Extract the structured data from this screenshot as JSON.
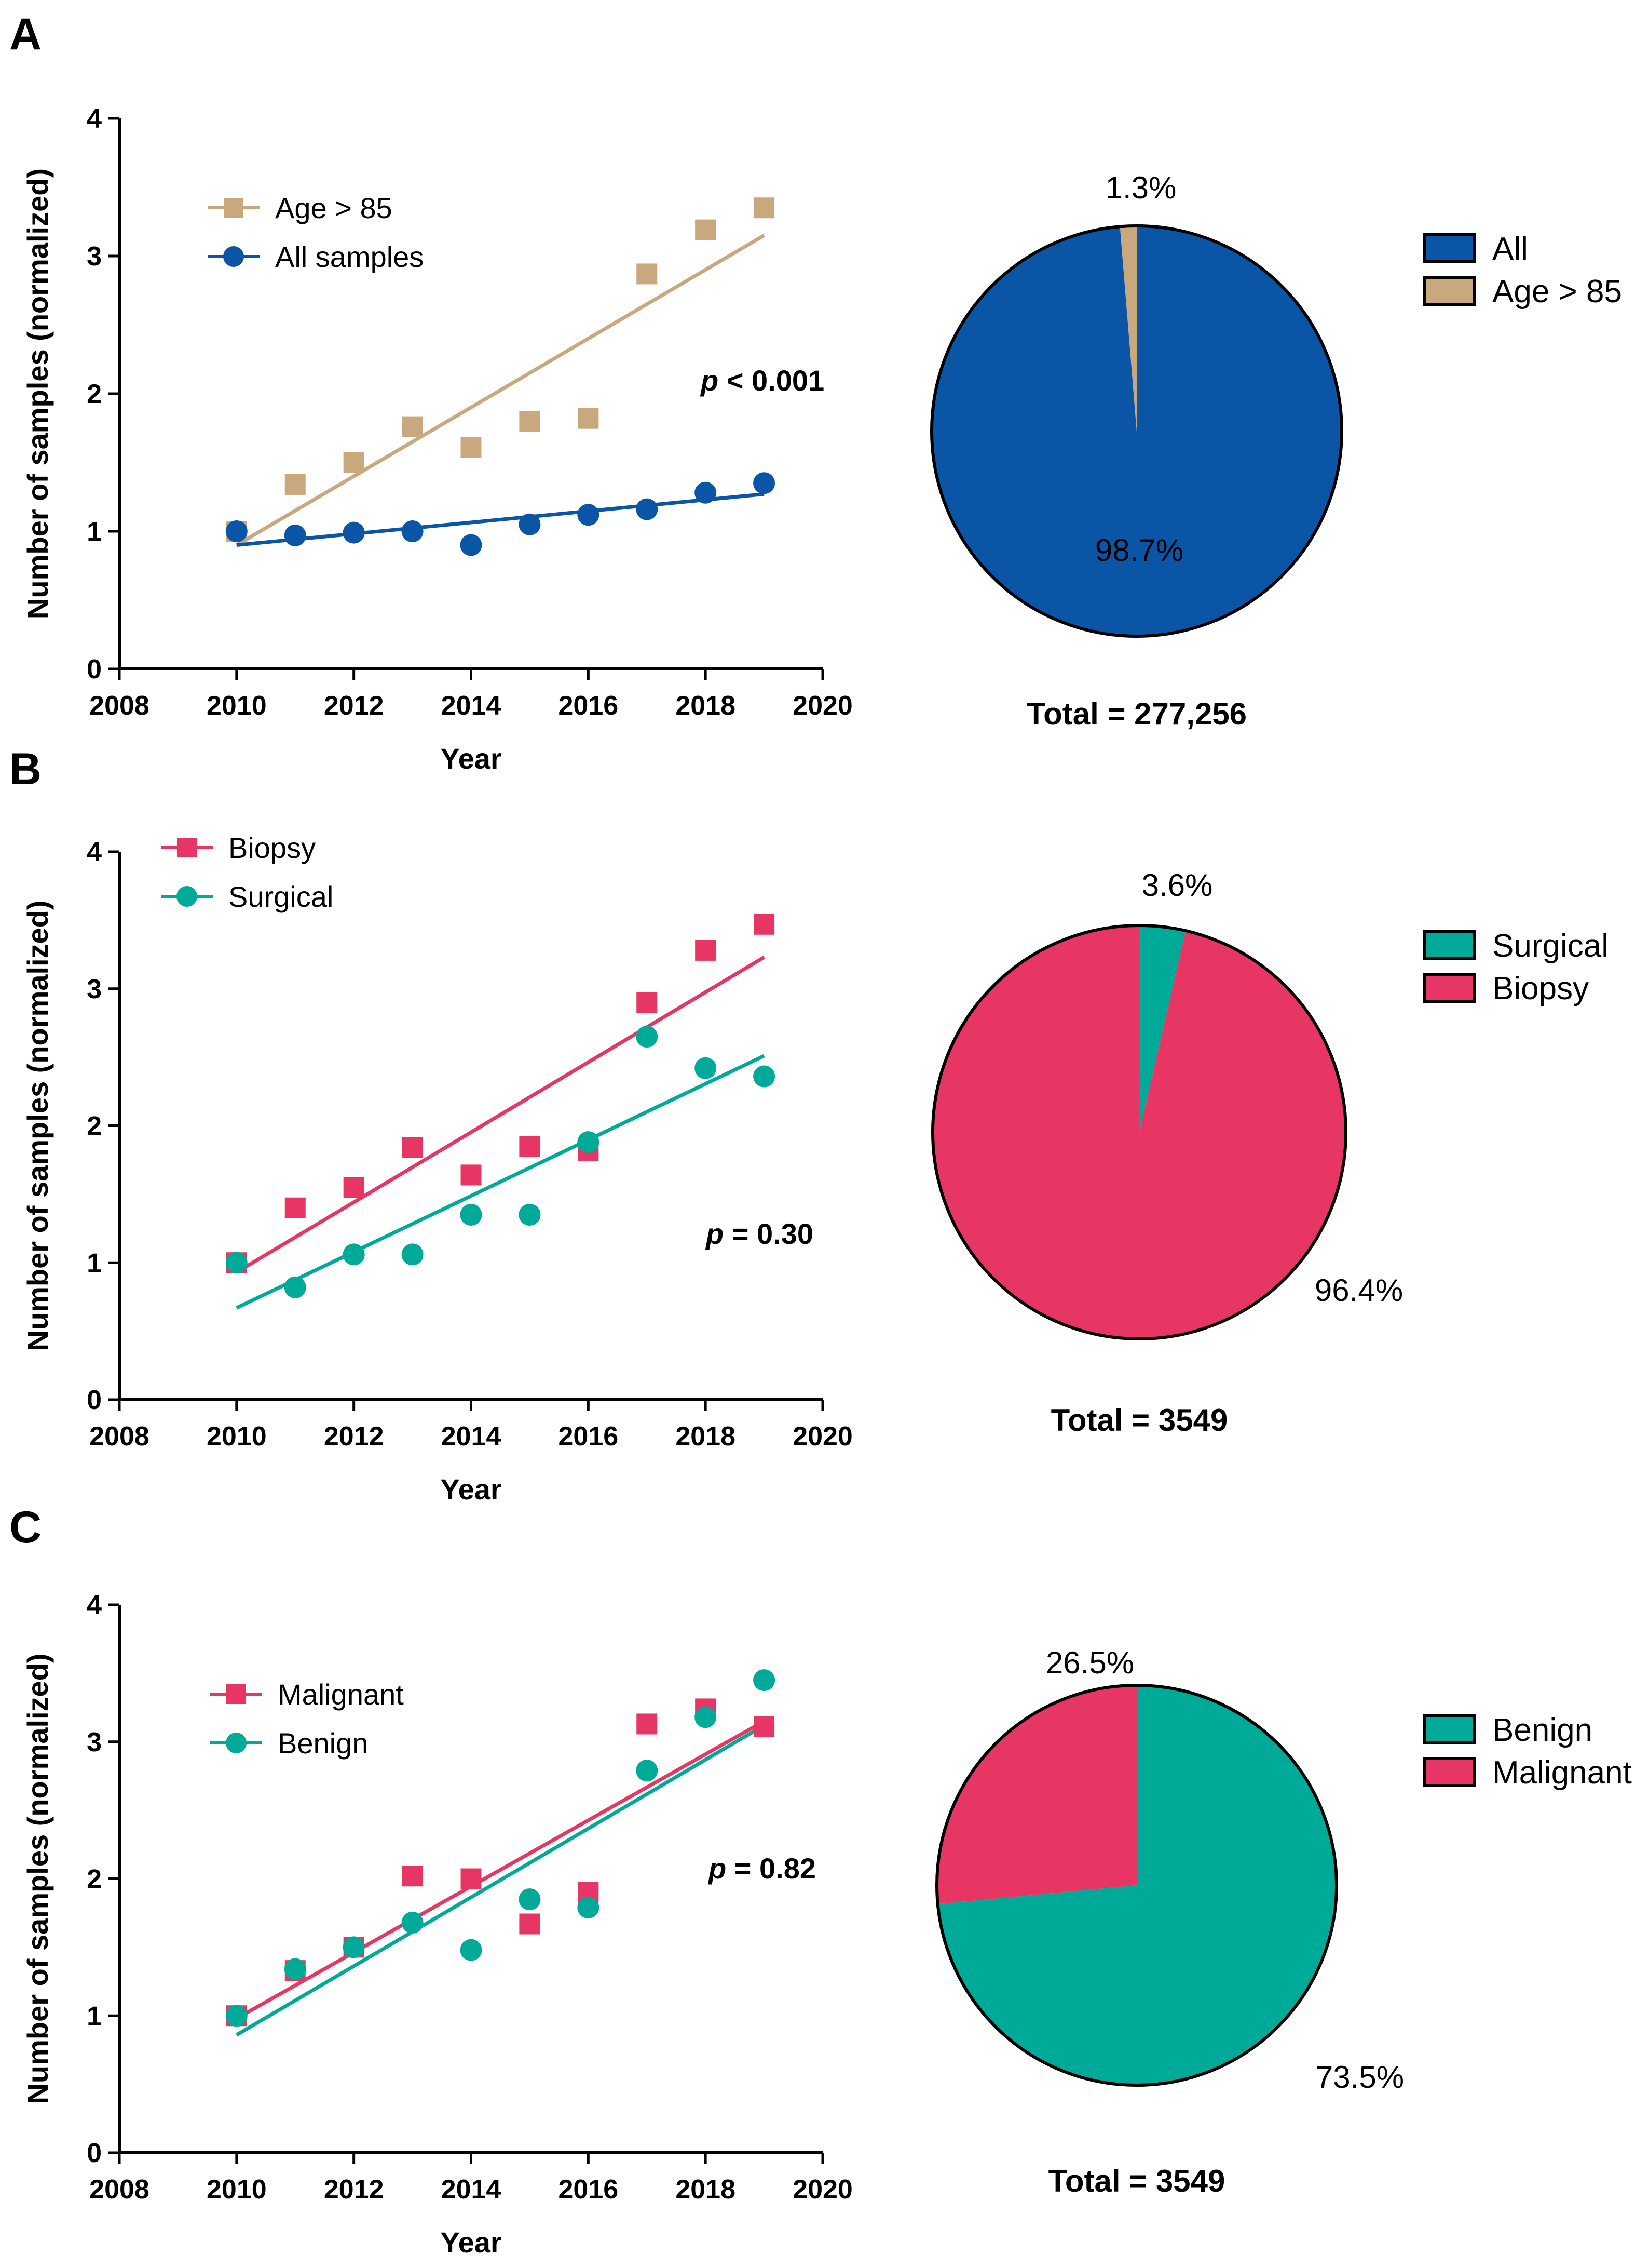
{
  "chart_data": [
    {
      "panel": "A",
      "type": "scatter",
      "xlabel": "Year",
      "ylabel": "Number of samples (normalized)",
      "xlim": [
        2008,
        2020
      ],
      "ylim": [
        0,
        4
      ],
      "xticks": [
        2008,
        2010,
        2012,
        2014,
        2016,
        2018,
        2020
      ],
      "yticks": [
        0,
        1,
        2,
        3,
        4
      ],
      "p_prefix": "p",
      "p_rest": " < 0.001",
      "legend_position": "top-left",
      "series": [
        {
          "name": "Age > 85",
          "marker": "square",
          "color": "#c8a87c",
          "x": [
            2010,
            2011,
            2012,
            2013,
            2014,
            2015,
            2016,
            2017,
            2018,
            2019
          ],
          "y": [
            1.0,
            1.34,
            1.5,
            1.76,
            1.61,
            1.8,
            1.82,
            2.87,
            3.19,
            3.35
          ],
          "fit": [
            0.9,
            3.15
          ]
        },
        {
          "name": "All samples",
          "marker": "circle",
          "color": "#0b55a6",
          "x": [
            2010,
            2011,
            2012,
            2013,
            2014,
            2015,
            2016,
            2017,
            2018,
            2019
          ],
          "y": [
            1.0,
            0.97,
            0.99,
            1.0,
            0.9,
            1.05,
            1.12,
            1.16,
            1.28,
            1.35
          ],
          "fit": [
            0.9,
            1.27
          ]
        }
      ],
      "pie": {
        "total_label": "Total = 277,256",
        "start": "top",
        "slices": [
          {
            "label": "All",
            "value": 98.7,
            "pct_label": "98.7%",
            "color": "#0b55a6"
          },
          {
            "label": "Age > 85",
            "value": 1.3,
            "pct_label": "1.3%",
            "color": "#c8a87c"
          }
        ]
      }
    },
    {
      "panel": "B",
      "type": "scatter",
      "xlabel": "Year",
      "ylabel": "Number of samples (normalized)",
      "xlim": [
        2008,
        2020
      ],
      "ylim": [
        0,
        4
      ],
      "xticks": [
        2008,
        2010,
        2012,
        2014,
        2016,
        2018,
        2020
      ],
      "yticks": [
        0,
        1,
        2,
        3,
        4
      ],
      "p_prefix": "p",
      "p_rest": " = 0.30",
      "legend_position": "top-left",
      "series": [
        {
          "name": "Biopsy",
          "marker": "square",
          "color": "#e73564",
          "x": [
            2010,
            2011,
            2012,
            2013,
            2014,
            2015,
            2016,
            2017,
            2018,
            2019
          ],
          "y": [
            1.0,
            1.4,
            1.55,
            1.84,
            1.64,
            1.85,
            1.82,
            2.9,
            3.28,
            3.47
          ],
          "fit": [
            0.93,
            3.23
          ]
        },
        {
          "name": "Surgical",
          "marker": "circle",
          "color": "#00aa98",
          "x": [
            2010,
            2011,
            2012,
            2013,
            2014,
            2015,
            2016,
            2017,
            2018,
            2019
          ],
          "y": [
            1.0,
            0.82,
            1.06,
            1.06,
            1.35,
            1.35,
            1.88,
            2.65,
            2.42,
            2.36
          ],
          "fit": [
            0.67,
            2.51
          ]
        }
      ],
      "pie": {
        "total_label": "Total = 3549",
        "start": "top",
        "slices": [
          {
            "label": "Surgical",
            "value": 3.6,
            "pct_label": "3.6%",
            "color": "#00aa98"
          },
          {
            "label": "Biopsy",
            "value": 96.4,
            "pct_label": "96.4%",
            "color": "#e73564"
          }
        ]
      }
    },
    {
      "panel": "C",
      "type": "scatter",
      "xlabel": "Year",
      "ylabel": "Number of samples (normalized)",
      "xlim": [
        2008,
        2020
      ],
      "ylim": [
        0,
        4
      ],
      "xticks": [
        2008,
        2010,
        2012,
        2014,
        2016,
        2018,
        2020
      ],
      "yticks": [
        0,
        1,
        2,
        3,
        4
      ],
      "p_prefix": "p",
      "p_rest": " = 0.82",
      "legend_position": "top-left",
      "series": [
        {
          "name": "Malignant",
          "marker": "square",
          "color": "#e73564",
          "x": [
            2010,
            2011,
            2012,
            2013,
            2014,
            2015,
            2016,
            2017,
            2018,
            2019
          ],
          "y": [
            1.0,
            1.33,
            1.5,
            2.02,
            2.0,
            1.67,
            1.9,
            3.13,
            3.24,
            3.11
          ],
          "fit": [
            0.98,
            3.15
          ]
        },
        {
          "name": "Benign",
          "marker": "circle",
          "color": "#00aa98",
          "x": [
            2010,
            2011,
            2012,
            2013,
            2014,
            2015,
            2016,
            2017,
            2018,
            2019
          ],
          "y": [
            1.0,
            1.34,
            1.5,
            1.68,
            1.48,
            1.85,
            1.79,
            2.79,
            3.18,
            3.45
          ],
          "fit": [
            0.86,
            3.12
          ]
        }
      ],
      "pie": {
        "total_label": "Total = 3549",
        "start": "top",
        "slices": [
          {
            "label": "Benign",
            "value": 73.5,
            "pct_label": "73.5%",
            "color": "#00aa98"
          },
          {
            "label": "Malignant",
            "value": 26.5,
            "pct_label": "26.5%",
            "color": "#e73564"
          }
        ]
      }
    }
  ]
}
